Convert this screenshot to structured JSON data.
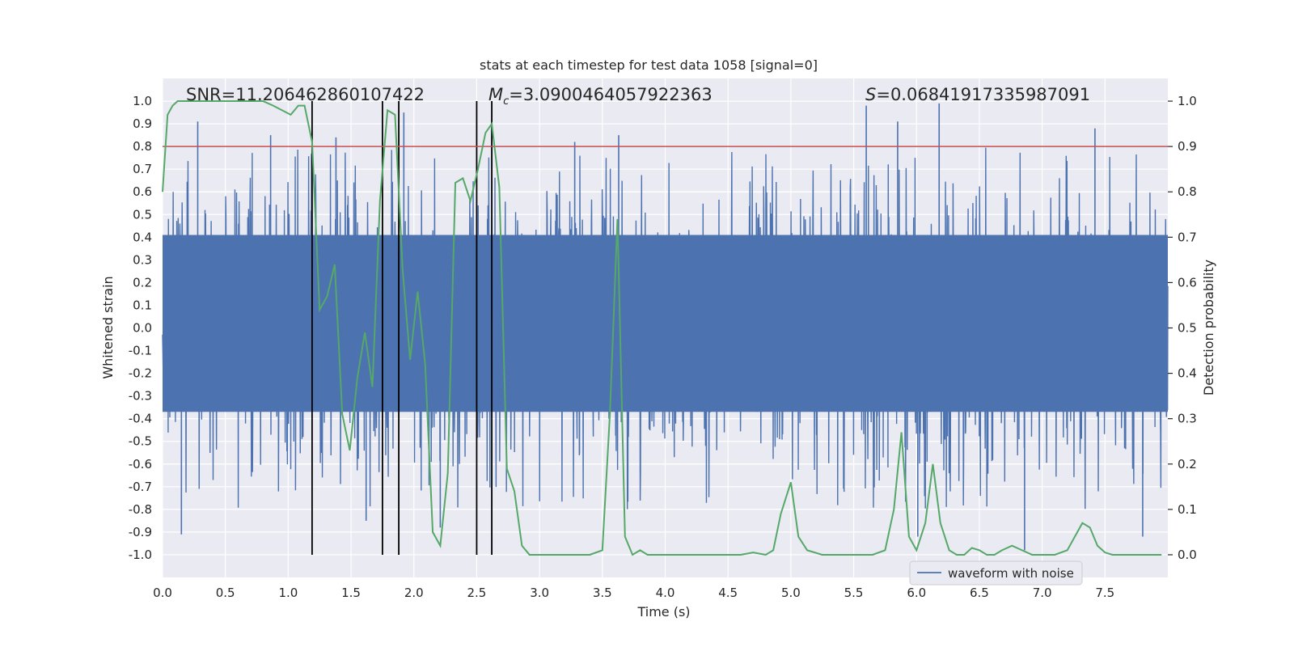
{
  "chart_data": {
    "type": "line",
    "title": "stats at each timestep for test data 1058 [signal=0]",
    "xlabel": "Time (s)",
    "ylabel": "Whitened strain",
    "ylabel_right": "Detection probability",
    "xlim": [
      0.0,
      8.0
    ],
    "ylim": [
      -1.1,
      1.1
    ],
    "ylim_right": [
      -0.05,
      1.05
    ],
    "x_ticks": [
      0.0,
      0.5,
      1.0,
      1.5,
      2.0,
      2.5,
      3.0,
      3.5,
      4.0,
      4.5,
      5.0,
      5.5,
      6.0,
      6.5,
      7.0,
      7.5
    ],
    "x_tick_labels": [
      "0.0",
      "0.5",
      "1.0",
      "1.5",
      "2.0",
      "2.5",
      "3.0",
      "3.5",
      "4.0",
      "4.5",
      "5.0",
      "5.5",
      "6.0",
      "6.5",
      "7.0",
      "7.5"
    ],
    "y_ticks": [
      1.0,
      0.9,
      0.8,
      0.7,
      0.6,
      0.5,
      0.4,
      0.3,
      0.2,
      0.1,
      0.0,
      -0.1,
      -0.2,
      -0.3,
      -0.4,
      -0.5,
      -0.6,
      -0.7,
      -0.8,
      -0.9,
      -1.0
    ],
    "y_tick_labels": [
      "1.0",
      "0.9",
      "0.8",
      "0.7",
      "0.6",
      "0.5",
      "0.4",
      "0.3",
      "0.2",
      "0.1",
      "0.0",
      "-0.1",
      "-0.2",
      "-0.3",
      "-0.4",
      "-0.5",
      "-0.6",
      "-0.7",
      "-0.8",
      "-0.9",
      "-1.0"
    ],
    "y_right_ticks": [
      1.0,
      0.9,
      0.8,
      0.7,
      0.6,
      0.5,
      0.4,
      0.3,
      0.2,
      0.1,
      0.0
    ],
    "y_right_tick_labels": [
      "1.0",
      "0.9",
      "0.8",
      "0.7",
      "0.6",
      "0.5",
      "0.4",
      "0.3",
      "0.2",
      "0.1",
      "0.0"
    ],
    "grid": true,
    "legend": {
      "entries": [
        "waveform with noise"
      ],
      "placement": "lower-right"
    },
    "annotations": {
      "snr": "SNR=11.206462860107422",
      "mc_symbol": "M",
      "mc_sub": "c",
      "mc_value": "=3.0900464057922363",
      "s_symbol": "S",
      "s_value": "=0.06841917335987091"
    },
    "threshold_right": 0.9,
    "vertical_lines_x": [
      1.19,
      1.75,
      1.88,
      2.5,
      2.62
    ],
    "waveform": {
      "name": "waveform with noise",
      "color": "#4c72b0",
      "duration_s": 8.0,
      "core_band": [
        -0.37,
        0.41
      ],
      "peaks": [
        {
          "t": 0.28,
          "v": 0.91
        },
        {
          "t": 0.86,
          "v": 0.85
        },
        {
          "t": 1.38,
          "v": 0.84
        },
        {
          "t": 1.92,
          "v": 0.95
        },
        {
          "t": 3.28,
          "v": 0.82
        },
        {
          "t": 3.63,
          "v": 0.85
        },
        {
          "t": 5.6,
          "v": 0.98
        },
        {
          "t": 5.85,
          "v": 0.91
        },
        {
          "t": 6.18,
          "v": 0.99
        },
        {
          "t": 7.42,
          "v": 0.88
        }
      ],
      "troughs": [
        {
          "t": 0.15,
          "v": -0.91
        },
        {
          "t": 1.62,
          "v": -0.85
        },
        {
          "t": 2.21,
          "v": -0.88
        },
        {
          "t": 6.01,
          "v": -0.92
        },
        {
          "t": 6.86,
          "v": -0.98
        },
        {
          "t": 7.8,
          "v": -0.92
        }
      ]
    },
    "detection_probability": {
      "color": "#55a868",
      "x": [
        0.0,
        0.04,
        0.08,
        0.12,
        0.2,
        0.3,
        0.4,
        0.5,
        0.6,
        0.7,
        0.8,
        0.88,
        0.95,
        1.02,
        1.08,
        1.13,
        1.19,
        1.25,
        1.31,
        1.37,
        1.43,
        1.49,
        1.55,
        1.61,
        1.67,
        1.73,
        1.79,
        1.85,
        1.91,
        1.97,
        2.03,
        2.09,
        2.15,
        2.21,
        2.27,
        2.33,
        2.39,
        2.45,
        2.51,
        2.57,
        2.62,
        2.68,
        2.74,
        2.8,
        2.86,
        2.92,
        3.0,
        3.1,
        3.2,
        3.3,
        3.4,
        3.5,
        3.56,
        3.62,
        3.68,
        3.74,
        3.8,
        3.86,
        3.92,
        4.0,
        4.2,
        4.4,
        4.6,
        4.7,
        4.8,
        4.86,
        4.92,
        5.0,
        5.06,
        5.13,
        5.25,
        5.35,
        5.5,
        5.65,
        5.75,
        5.82,
        5.88,
        5.94,
        6.0,
        6.07,
        6.13,
        6.19,
        6.26,
        6.32,
        6.38,
        6.44,
        6.5,
        6.56,
        6.62,
        6.68,
        6.76,
        6.84,
        6.92,
        7.0,
        7.1,
        7.2,
        7.26,
        7.32,
        7.38,
        7.44,
        7.5,
        7.56,
        7.62,
        7.7,
        7.8,
        7.95
      ],
      "y": [
        0.8,
        0.97,
        0.99,
        1.0,
        1.0,
        1.0,
        1.0,
        1.0,
        1.0,
        1.0,
        1.0,
        0.99,
        0.98,
        0.97,
        0.99,
        0.99,
        0.91,
        0.54,
        0.57,
        0.64,
        0.31,
        0.23,
        0.39,
        0.49,
        0.37,
        0.78,
        0.98,
        0.97,
        0.63,
        0.43,
        0.58,
        0.42,
        0.05,
        0.02,
        0.18,
        0.82,
        0.83,
        0.78,
        0.85,
        0.93,
        0.95,
        0.81,
        0.19,
        0.14,
        0.02,
        0.0,
        0.0,
        0.0,
        0.0,
        0.0,
        0.0,
        0.01,
        0.31,
        0.74,
        0.04,
        0.0,
        0.01,
        0.0,
        0.0,
        0.0,
        0.0,
        0.0,
        0.0,
        0.005,
        0.0,
        0.01,
        0.09,
        0.16,
        0.04,
        0.01,
        0.0,
        0.0,
        0.0,
        0.0,
        0.01,
        0.1,
        0.27,
        0.04,
        0.01,
        0.07,
        0.2,
        0.07,
        0.01,
        0.0,
        0.0,
        0.015,
        0.01,
        0.0,
        0.0,
        0.01,
        0.02,
        0.01,
        0.0,
        0.0,
        0.0,
        0.01,
        0.04,
        0.07,
        0.06,
        0.02,
        0.005,
        0.0,
        0.0,
        0.0,
        0.0,
        0.0
      ]
    }
  }
}
